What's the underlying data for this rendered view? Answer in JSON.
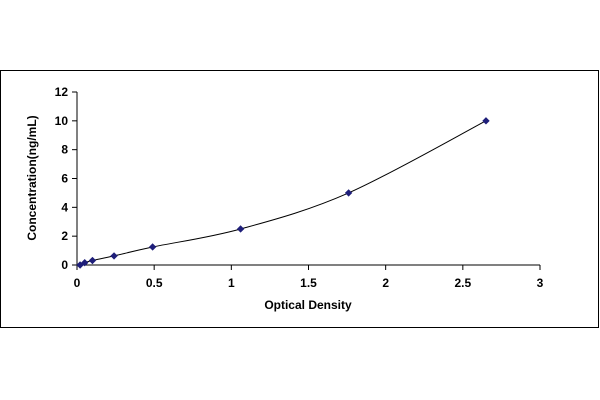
{
  "chart_data": {
    "type": "scatter",
    "title": "",
    "xlabel": "Optical Density",
    "ylabel": "Concentration(ng/mL)",
    "xlim": [
      0,
      3
    ],
    "ylim": [
      0,
      12
    ],
    "xticks": [
      "0",
      "0.5",
      "1",
      "1.5",
      "2",
      "2.5",
      "3"
    ],
    "yticks": [
      "0",
      "2",
      "4",
      "6",
      "8",
      "10",
      "12"
    ],
    "grid": false,
    "legend": "none",
    "series": [
      {
        "points": [
          {
            "x": 0.02,
            "y": 0.0
          },
          {
            "x": 0.05,
            "y": 0.16
          },
          {
            "x": 0.1,
            "y": 0.31
          },
          {
            "x": 0.24,
            "y": 0.63
          },
          {
            "x": 0.49,
            "y": 1.25
          },
          {
            "x": 1.06,
            "y": 2.5
          },
          {
            "x": 1.76,
            "y": 5.0
          },
          {
            "x": 2.65,
            "y": 10.0
          }
        ],
        "trendline": "smooth curve through points"
      }
    ],
    "colors": {
      "marker": "#1f1f7a",
      "line": "#000000",
      "axis": "#000000",
      "frame": "#000000",
      "background": "#ffffff"
    }
  }
}
